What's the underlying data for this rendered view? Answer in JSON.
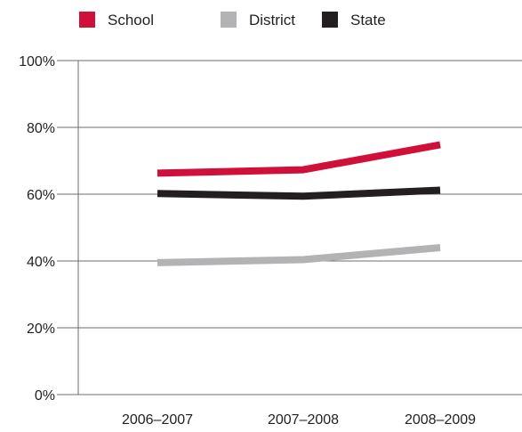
{
  "chart_data": {
    "type": "line",
    "categories": [
      "2006–2007",
      "2007–2008",
      "2008–2009"
    ],
    "series": [
      {
        "name": "School",
        "color": "#d0103a",
        "values": [
          66.3,
          67.3,
          74.8
        ]
      },
      {
        "name": "District",
        "color": "#b3b3b5",
        "values": [
          39.5,
          40.4,
          44.0
        ]
      },
      {
        "name": "State",
        "color": "#231f20",
        "values": [
          60.2,
          59.4,
          61.2
        ]
      }
    ],
    "yticks": [
      "0%",
      "20%",
      "40%",
      "60%",
      "80%",
      "100%"
    ],
    "ylim": [
      0,
      100
    ],
    "grid": true,
    "legend_position": "top"
  }
}
